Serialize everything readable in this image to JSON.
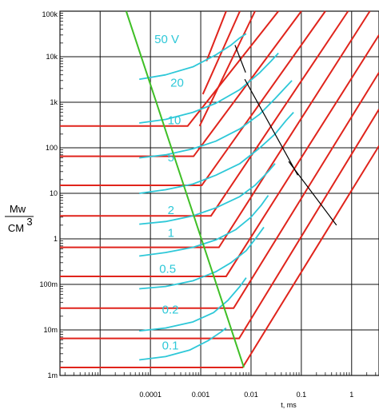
{
  "chart_data": {
    "type": "line",
    "title": "",
    "xlabel": "t, ms",
    "ylabel_numerator": "Mw",
    "ylabel_denominator": "CM",
    "ylabel_exponent": "3",
    "x_scale": "log",
    "y_scale": "log",
    "xlim": [
      1.59e-06,
      3.5
    ],
    "ylim": [
      0.001,
      100000
    ],
    "grid": true,
    "x_ticks": [
      {
        "value": 0.0001,
        "label": "0.0001"
      },
      {
        "value": 0.001,
        "label": "0.001"
      },
      {
        "value": 0.01,
        "label": "0.01"
      },
      {
        "value": 0.1,
        "label": "0.1"
      },
      {
        "value": 1,
        "label": "1"
      }
    ],
    "y_ticks": [
      {
        "value": 0.001,
        "label": "1m"
      },
      {
        "value": 0.01,
        "label": "10m"
      },
      {
        "value": 0.1,
        "label": "100m"
      },
      {
        "value": 1,
        "label": "1"
      },
      {
        "value": 10,
        "label": "10"
      },
      {
        "value": 100,
        "label": "100"
      },
      {
        "value": 1000,
        "label": "1k"
      },
      {
        "value": 10000,
        "label": "10k"
      },
      {
        "value": 100000,
        "label": "100k"
      }
    ],
    "colors": {
      "grid": "#111111",
      "red": "#e0241c",
      "cyan": "#2ec8d8",
      "green": "#3fbf26",
      "black": "#000000"
    },
    "red_limit_lines": [
      {
        "flat_value": 0.0015,
        "knee_t": 0.0068,
        "end": [
          3.5,
          110
        ]
      },
      {
        "flat_value": 0.0065,
        "knee_t": 0.0058,
        "end": [
          3.5,
          700
        ]
      },
      {
        "flat_value": 0.03,
        "knee_t": 0.0045,
        "end": [
          3.5,
          4500
        ]
      },
      {
        "flat_value": 0.15,
        "knee_t": 0.0032,
        "end": [
          3.5,
          30000
        ]
      },
      {
        "flat_value": 0.65,
        "knee_t": 0.0023,
        "end": [
          2.3,
          100000
        ]
      },
      {
        "flat_value": 3.2,
        "knee_t": 0.0016,
        "end": [
          0.85,
          100000
        ]
      },
      {
        "flat_value": 15,
        "knee_t": 0.00105,
        "end": [
          0.3,
          100000
        ]
      },
      {
        "flat_value": 65,
        "knee_t": 0.00072,
        "end": [
          0.1,
          100000
        ]
      },
      {
        "flat_value": 300,
        "knee_t": 0.00055,
        "end": [
          0.035,
          100000
        ]
      },
      {
        "start": [
          0.00095,
          300
        ],
        "end": [
          0.012,
          100000
        ]
      },
      {
        "start": [
          0.0011,
          1500
        ],
        "end": [
          0.006,
          100000
        ]
      },
      {
        "start": [
          0.0013,
          8000
        ],
        "end": [
          0.0032,
          100000
        ]
      }
    ],
    "cyan_curves": [
      {
        "label": "0.1",
        "points": [
          [
            6e-05,
            0.0022
          ],
          [
            0.0002,
            0.0026
          ],
          [
            0.0006,
            0.0036
          ],
          [
            0.0014,
            0.0058
          ],
          [
            0.0026,
            0.0092
          ],
          [
            0.0032,
            0.011
          ]
        ]
      },
      {
        "label": "0.2",
        "points": [
          [
            6e-05,
            0.0095
          ],
          [
            0.0002,
            0.011
          ],
          [
            0.0007,
            0.015
          ],
          [
            0.0018,
            0.024
          ],
          [
            0.0035,
            0.045
          ],
          [
            0.006,
            0.09
          ],
          [
            0.008,
            0.14
          ]
        ]
      },
      {
        "label": "0.5",
        "points": [
          [
            6e-05,
            0.08
          ],
          [
            0.0002,
            0.09
          ],
          [
            0.0007,
            0.12
          ],
          [
            0.002,
            0.19
          ],
          [
            0.004,
            0.3
          ],
          [
            0.008,
            0.55
          ],
          [
            0.013,
            1.1
          ],
          [
            0.018,
            1.8
          ]
        ]
      },
      {
        "label": "1",
        "points": [
          [
            6e-05,
            0.42
          ],
          [
            0.0002,
            0.5
          ],
          [
            0.0007,
            0.65
          ],
          [
            0.002,
            0.95
          ],
          [
            0.005,
            1.6
          ],
          [
            0.01,
            3
          ],
          [
            0.016,
            5.5
          ],
          [
            0.022,
            9
          ]
        ]
      },
      {
        "label": "2",
        "points": [
          [
            6e-05,
            2.1
          ],
          [
            0.0002,
            2.4
          ],
          [
            0.0007,
            3.2
          ],
          [
            0.002,
            4.8
          ],
          [
            0.006,
            8.5
          ],
          [
            0.012,
            15
          ],
          [
            0.022,
            30
          ],
          [
            0.03,
            45
          ]
        ]
      },
      {
        "label": "5",
        "points": [
          [
            6e-05,
            10
          ],
          [
            0.0002,
            12
          ],
          [
            0.0007,
            16
          ],
          [
            0.002,
            25
          ],
          [
            0.006,
            45
          ],
          [
            0.015,
            100
          ],
          [
            0.03,
            200
          ],
          [
            0.05,
            400
          ],
          [
            0.07,
            600
          ]
        ]
      },
      {
        "label": "10",
        "points": [
          [
            6e-05,
            60
          ],
          [
            0.0002,
            70
          ],
          [
            0.0007,
            95
          ],
          [
            0.002,
            140
          ],
          [
            0.006,
            260
          ],
          [
            0.015,
            550
          ],
          [
            0.03,
            1200
          ],
          [
            0.05,
            2200
          ],
          [
            0.065,
            3000
          ]
        ]
      },
      {
        "label": "20",
        "points": [
          [
            6e-05,
            350
          ],
          [
            0.0002,
            420
          ],
          [
            0.0007,
            600
          ],
          [
            0.002,
            950
          ],
          [
            0.006,
            1900
          ],
          [
            0.015,
            4500
          ],
          [
            0.025,
            8000
          ],
          [
            0.035,
            12000
          ]
        ]
      },
      {
        "label": "50 V",
        "points": [
          [
            6e-05,
            3200
          ],
          [
            0.0002,
            4000
          ],
          [
            0.0007,
            6000
          ],
          [
            0.002,
            11000
          ],
          [
            0.004,
            18000
          ],
          [
            0.006,
            26000
          ],
          [
            0.008,
            32000
          ]
        ]
      }
    ],
    "green_line": [
      [
        3.3e-05,
        100000
      ],
      [
        0.0072,
        0.0015
      ]
    ],
    "black_segments": [
      [
        [
          0.0048,
          18000
        ],
        [
          0.0078,
          4500
        ]
      ],
      [
        [
          0.0075,
          3200
        ],
        [
          0.085,
          25
        ]
      ],
      [
        [
          0.056,
          50
        ],
        [
          0.5,
          2
        ]
      ]
    ],
    "curve_labels": [
      {
        "text": "50 V",
        "at": [
          0.00012,
          20000
        ]
      },
      {
        "text": "20",
        "at": [
          0.00025,
          2200
        ]
      },
      {
        "text": "10",
        "at": [
          0.00022,
          330
        ]
      },
      {
        "text": "5",
        "at": [
          0.00022,
          50
        ]
      },
      {
        "text": "2",
        "at": [
          0.00022,
          3.5
        ]
      },
      {
        "text": "1",
        "at": [
          0.00022,
          1.1
        ]
      },
      {
        "text": "0.5",
        "at": [
          0.00015,
          0.18
        ]
      },
      {
        "text": "0.2",
        "at": [
          0.00017,
          0.023
        ]
      },
      {
        "text": "0.1",
        "at": [
          0.00017,
          0.0037
        ]
      }
    ]
  }
}
